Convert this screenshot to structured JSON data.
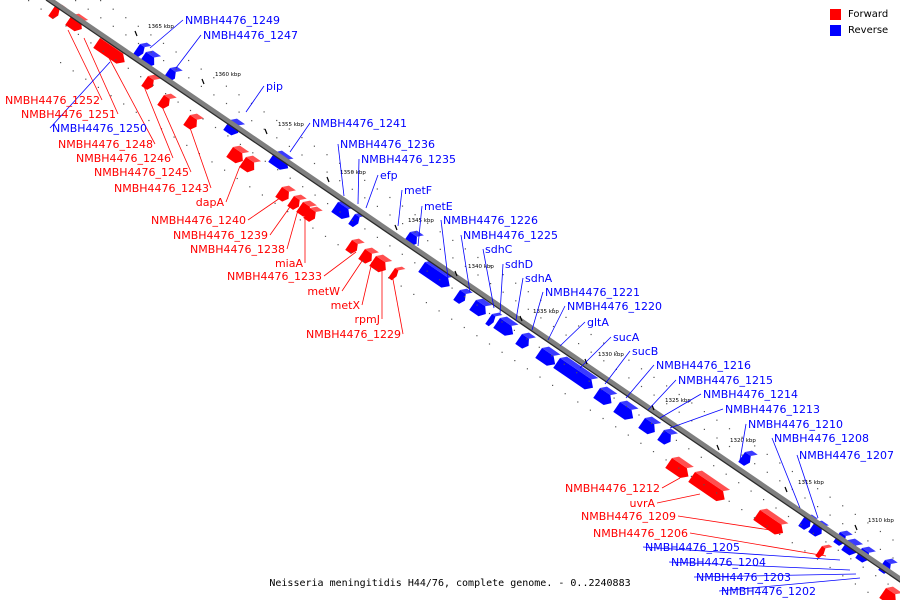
{
  "legend": {
    "forward": "Forward",
    "reverse": "Reverse",
    "forward_color": "#ff0000",
    "reverse_color": "#0000ff"
  },
  "caption": "Neisseria meningitidis H44/76, complete genome. - 0..2240883",
  "kbp_ticks": [
    "1365 kbp",
    "1360 kbp",
    "1355 kbp",
    "1350 kbp",
    "1345 kbp",
    "1340 kbp",
    "1335 kbp",
    "1330 kbp",
    "1325 kbp",
    "1320 kbp",
    "1315 kbp",
    "1310 kbp"
  ],
  "forward_labels": [
    "NMBH4476_1252",
    "NMBH4476_1251",
    "NMBH4476_1248",
    "NMBH4476_1246",
    "NMBH4476_1245",
    "NMBH4476_1243",
    "dapA",
    "NMBH4476_1240",
    "NMBH4476_1239",
    "NMBH4476_1238",
    "miaA",
    "NMBH4476_1233",
    "metW",
    "metX",
    "rpmJ",
    "NMBH4476_1229",
    "NMBH4476_1212",
    "uvrA",
    "NMBH4476_1209",
    "NMBH4476_1206"
  ],
  "reverse_labels": [
    "NMBH4476_1249",
    "NMBH4476_1247",
    "pip",
    "NMBH4476_1250",
    "NMBH4476_1241",
    "NMBH4476_1236",
    "NMBH4476_1235",
    "efp",
    "metF",
    "metE",
    "NMBH4476_1226",
    "NMBH4476_1225",
    "sdhC",
    "sdhD",
    "sdhA",
    "NMBH4476_1221",
    "NMBH4476_1220",
    "gltA",
    "sucA",
    "sucB",
    "NMBH4476_1216",
    "NMBH4476_1215",
    "NMBH4476_1214",
    "NMBH4476_1213",
    "NMBH4476_1210",
    "NMBH4476_1208",
    "NMBH4476_1207",
    "NMBH4476_1205",
    "NMBH4476_1204",
    "NMBH4476_1203",
    "NMBH4476_1202"
  ]
}
